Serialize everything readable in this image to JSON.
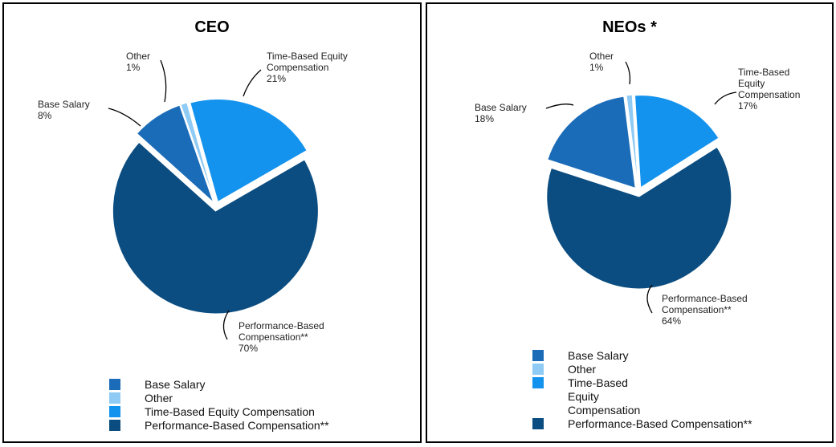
{
  "chart_data": [
    {
      "type": "pie",
      "title": "CEO",
      "categories": [
        "Base Salary",
        "Other",
        "Time-Based Equity Compensation",
        "Performance-Based Compensation**"
      ],
      "values": [
        8,
        1,
        21,
        70
      ],
      "value_labels": [
        "8%",
        "1%",
        "21%",
        "70%"
      ],
      "colors": [
        "#1b6cb8",
        "#8fcbf4",
        "#1393ee",
        "#0b4d80"
      ]
    },
    {
      "type": "pie",
      "title": "NEOs *",
      "categories": [
        "Base Salary",
        "Other",
        "Time-Based Equity Compensation",
        "Performance-Based Compensation**"
      ],
      "values": [
        18,
        1,
        17,
        64
      ],
      "value_labels": [
        "18%",
        "1%",
        "17%",
        "64%"
      ],
      "colors": [
        "#1b6cb8",
        "#8fcbf4",
        "#1393ee",
        "#0b4d80"
      ]
    }
  ]
}
